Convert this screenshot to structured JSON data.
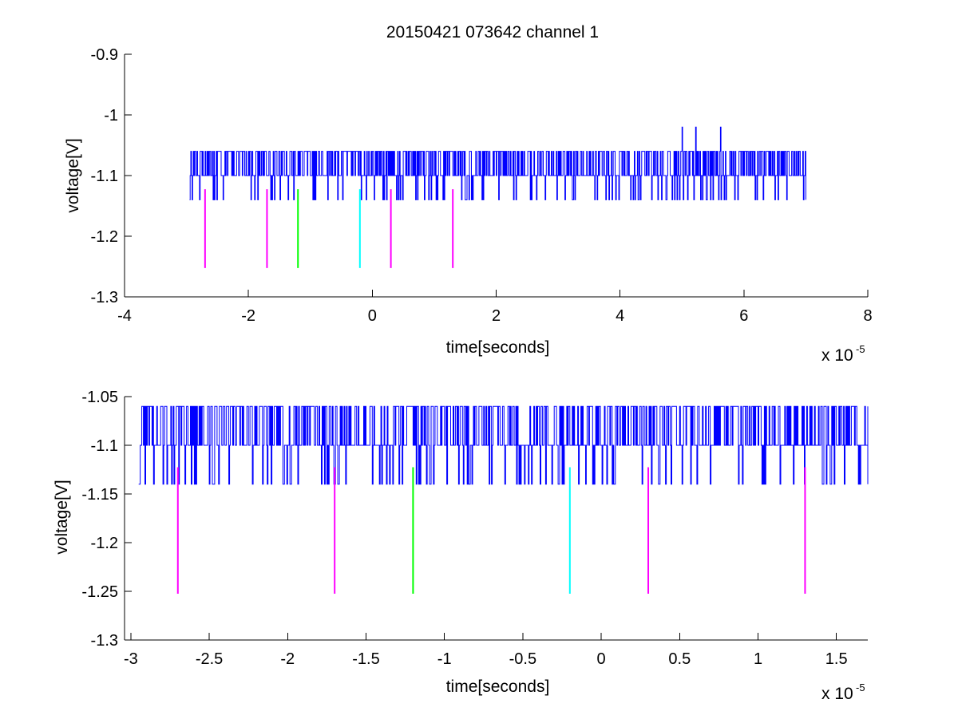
{
  "figure": {
    "title": "20150421 073642 channel 1"
  },
  "colors": {
    "trace": "#0000ff",
    "magenta": "#ff00ff",
    "green": "#00ff00",
    "cyan": "#00ffff",
    "axis": "#000000",
    "background": "#ffffff"
  },
  "chart_data": [
    {
      "type": "line",
      "title": "20150421 073642 channel 1",
      "xlabel": "time[seconds]",
      "ylabel": "voltage[V]",
      "x_exponent_label": "x 10",
      "x_exponent": "-5",
      "xlim": [
        -4e-05,
        8e-05
      ],
      "ylim": [
        -1.3,
        -0.9
      ],
      "xticks": [
        -4e-05,
        -2e-05,
        0,
        2e-05,
        4e-05,
        6e-05,
        8e-05
      ],
      "xtick_labels": [
        "-4",
        "-2",
        "0",
        "2",
        "4",
        "6",
        "8"
      ],
      "yticks": [
        -1.3,
        -1.2,
        -1.1,
        -1.0,
        -0.9
      ],
      "ytick_labels": [
        "-1.3",
        "-1.2",
        "-1.1",
        "-1",
        "-0.9"
      ],
      "grid": false,
      "series": [
        {
          "color": "#0000ff",
          "x_range": [
            -2.95e-05,
            7e-05
          ],
          "baseline": -1.1,
          "levels": [
            -1.06,
            -1.1,
            -1.14
          ],
          "spikes": [
            {
              "x": 5e-05,
              "y": -1.02
            },
            {
              "x": 5.22e-05,
              "y": -1.02
            },
            {
              "x": 5.62e-05,
              "y": -1.02
            }
          ]
        }
      ],
      "markers": [
        {
          "x": -2.7e-05,
          "y_top": -1.1225,
          "y_bottom": -1.2525,
          "color": "#ff00ff"
        },
        {
          "x": -1.7e-05,
          "y_top": -1.1225,
          "y_bottom": -1.2525,
          "color": "#ff00ff"
        },
        {
          "x": -1.2e-05,
          "y_top": -1.1225,
          "y_bottom": -1.2525,
          "color": "#00ff00"
        },
        {
          "x": -2e-06,
          "y_top": -1.1225,
          "y_bottom": -1.2525,
          "color": "#00ffff"
        },
        {
          "x": 3e-06,
          "y_top": -1.1225,
          "y_bottom": -1.2525,
          "color": "#ff00ff"
        },
        {
          "x": 1.3e-05,
          "y_top": -1.1225,
          "y_bottom": -1.2525,
          "color": "#ff00ff"
        }
      ]
    },
    {
      "type": "line",
      "xlabel": "time[seconds]",
      "ylabel": "voltage[V]",
      "x_exponent_label": "x 10",
      "x_exponent": "-5",
      "xlim": [
        -3.04e-05,
        1.7e-05
      ],
      "ylim": [
        -1.3,
        -1.05
      ],
      "xticks": [
        -3e-05,
        -2.5e-05,
        -2e-05,
        -1.5e-05,
        -1e-05,
        -5e-06,
        0,
        5e-06,
        1e-05,
        1.5e-05
      ],
      "xtick_labels": [
        "-3",
        "-2.5",
        "-2",
        "-1.5",
        "-1",
        "-0.5",
        "0",
        "0.5",
        "1",
        "1.5"
      ],
      "yticks": [
        -1.3,
        -1.25,
        -1.2,
        -1.15,
        -1.1,
        -1.05
      ],
      "ytick_labels": [
        "-1.3",
        "-1.25",
        "-1.2",
        "-1.15",
        "-1.1",
        "-1.05"
      ],
      "grid": false,
      "series": [
        {
          "color": "#0000ff",
          "x_range": [
            -2.95e-05,
            1.7e-05
          ],
          "baseline": -1.1,
          "levels": [
            -1.06,
            -1.1,
            -1.14
          ]
        }
      ],
      "markers": [
        {
          "x": -2.7e-05,
          "y_top": -1.1225,
          "y_bottom": -1.2525,
          "color": "#ff00ff"
        },
        {
          "x": -1.7e-05,
          "y_top": -1.1225,
          "y_bottom": -1.2525,
          "color": "#ff00ff"
        },
        {
          "x": -1.2e-05,
          "y_top": -1.1225,
          "y_bottom": -1.2525,
          "color": "#00ff00"
        },
        {
          "x": -2e-06,
          "y_top": -1.1225,
          "y_bottom": -1.2525,
          "color": "#00ffff"
        },
        {
          "x": 3e-06,
          "y_top": -1.1225,
          "y_bottom": -1.2525,
          "color": "#ff00ff"
        },
        {
          "x": 1.3e-05,
          "y_top": -1.1225,
          "y_bottom": -1.2525,
          "color": "#ff00ff"
        }
      ]
    }
  ]
}
